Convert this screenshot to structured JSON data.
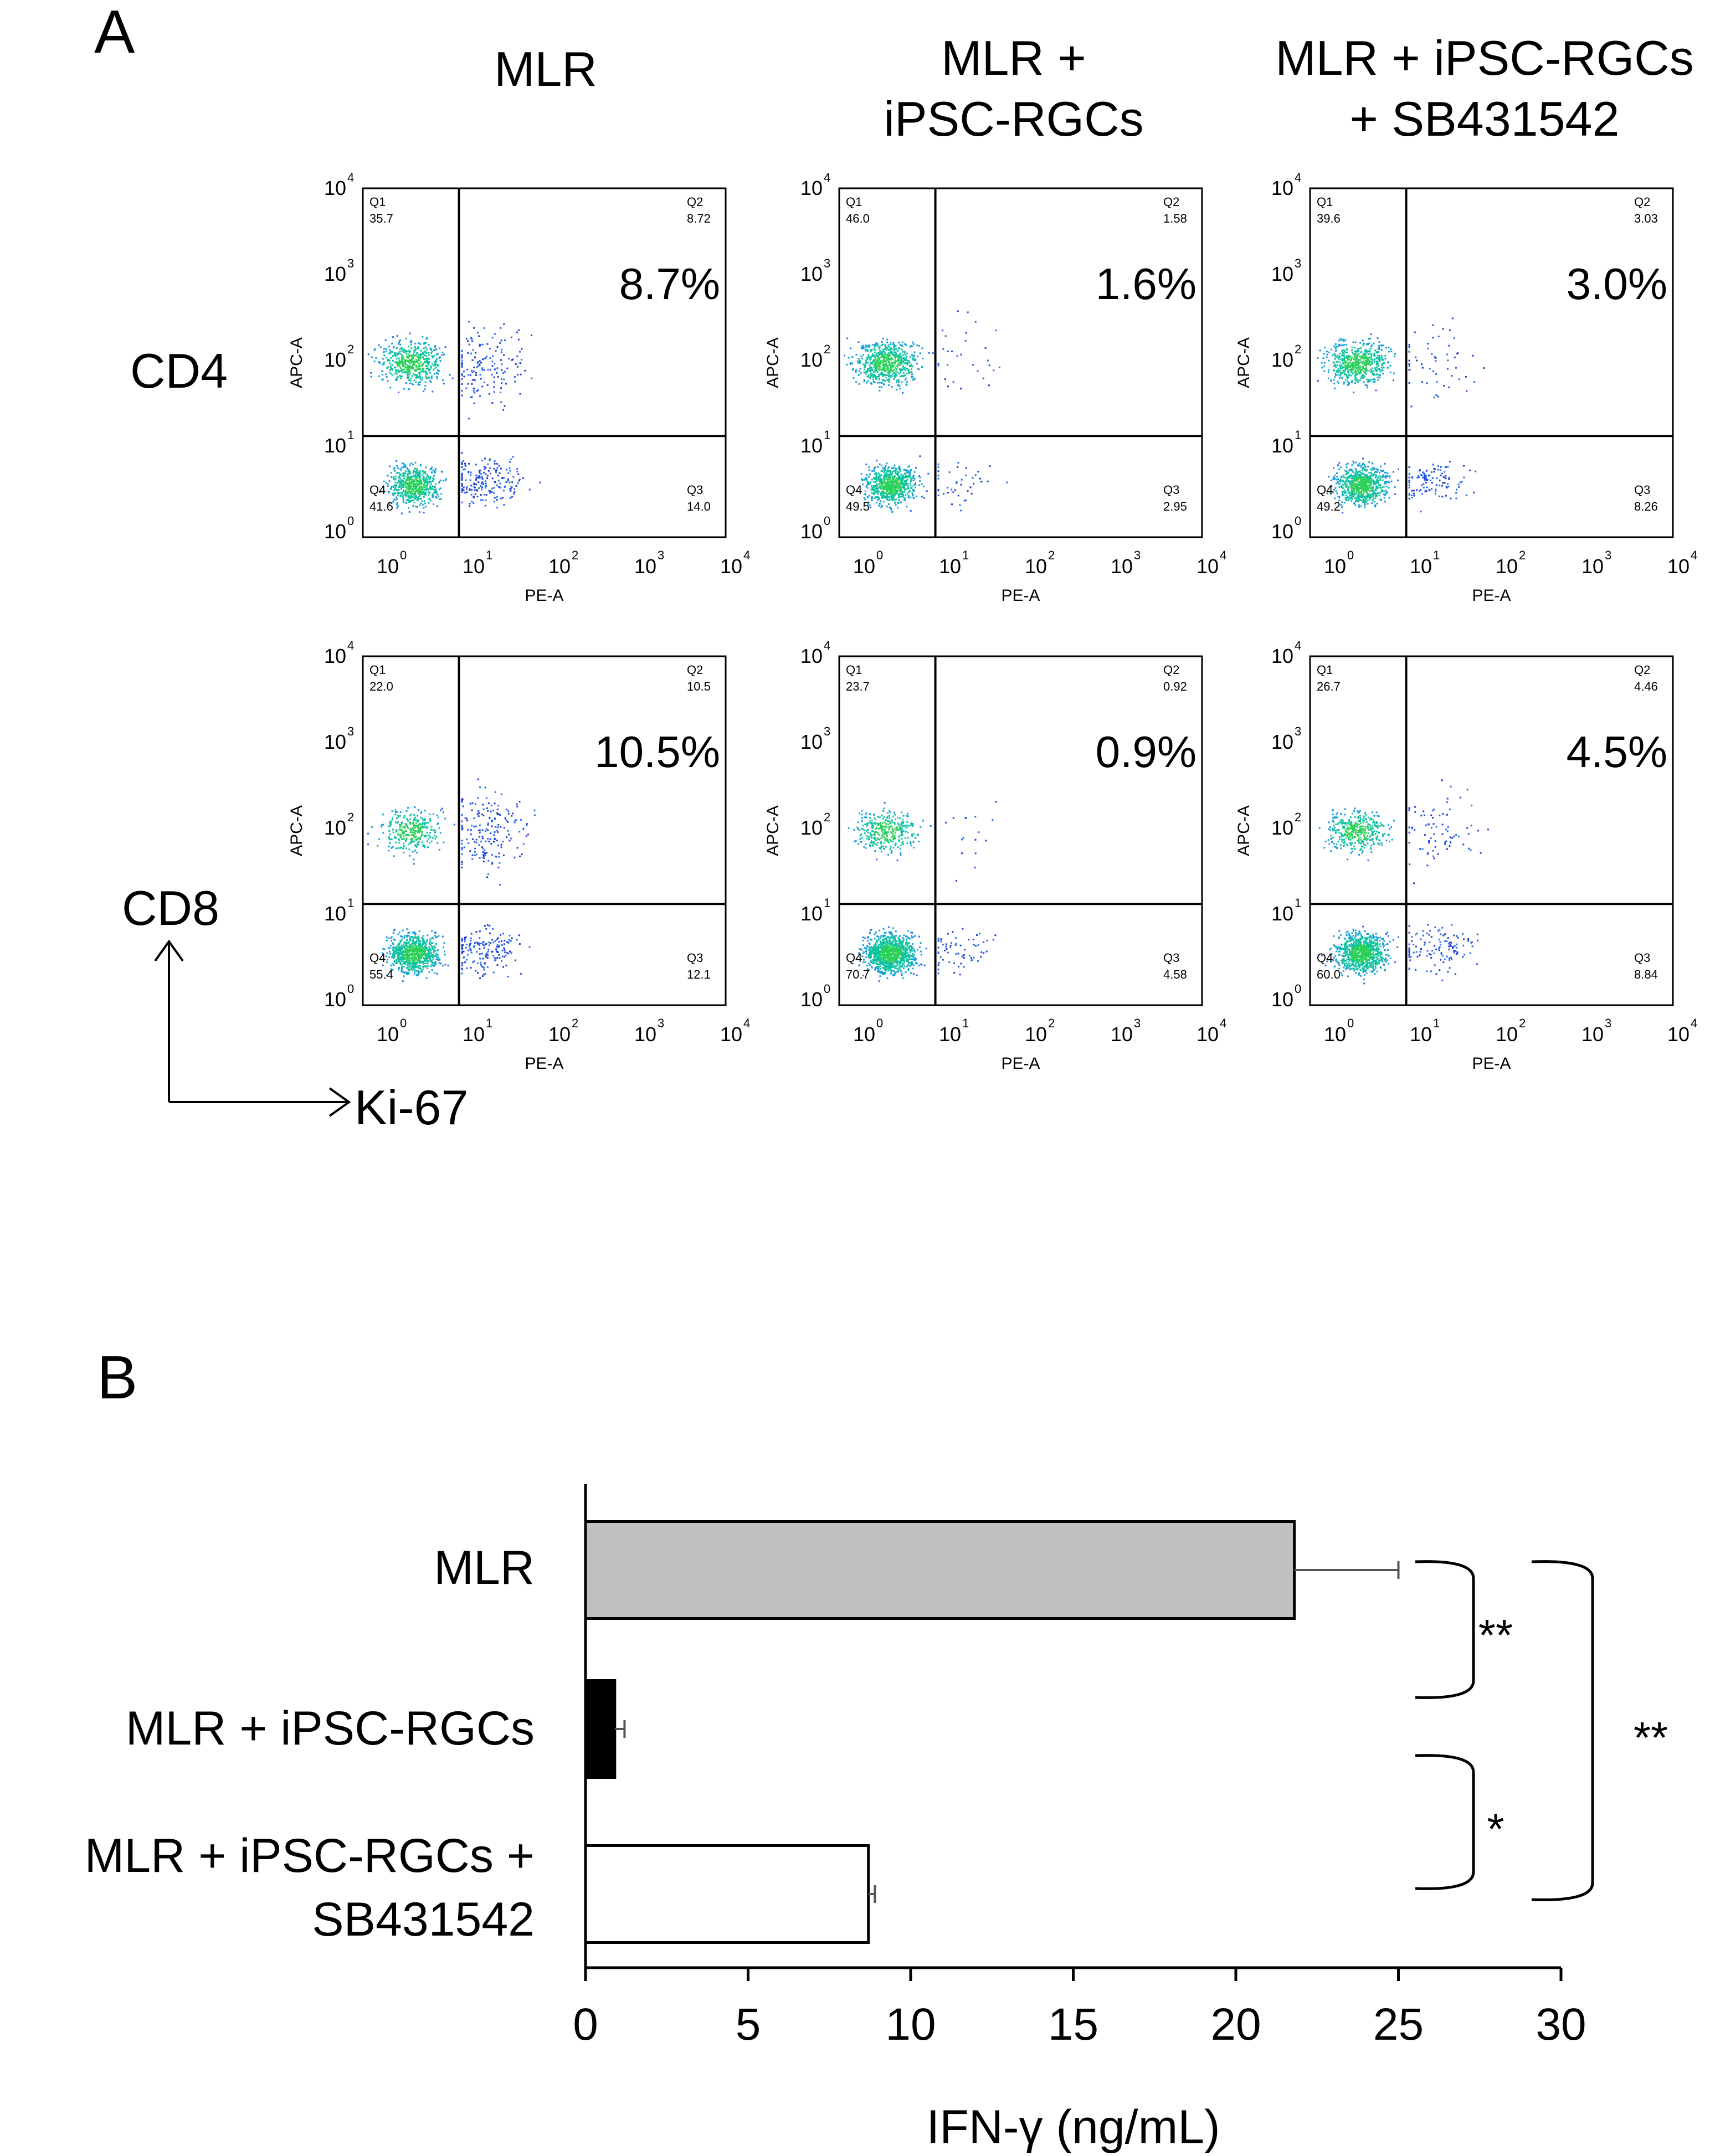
{
  "panel_labels": {
    "a": "A",
    "b": "B"
  },
  "flow": {
    "columns": [
      [
        "MLR"
      ],
      [
        "MLR +",
        "iPSC-RGCs"
      ],
      [
        "MLR + iPSC-RGCs",
        "+ SB431542"
      ]
    ],
    "rows": [
      "CD4",
      "CD8"
    ],
    "axis_key": {
      "y": "CD8",
      "x": "Ki-67"
    },
    "x_axis_title": "PE-A",
    "y_axis_title": "APC-A",
    "tick_base": "10",
    "tick_exponents": [
      "0",
      "1",
      "2",
      "3",
      "4"
    ],
    "quadrant_names": [
      "Q1",
      "Q2",
      "Q3",
      "Q4"
    ],
    "plots": [
      {
        "row": 0,
        "col": 0,
        "q1": "35.7",
        "q2": "8.72",
        "q3": "14.0",
        "q4": "41.6",
        "highlight": "8.7%"
      },
      {
        "row": 0,
        "col": 1,
        "q1": "46.0",
        "q2": "1.58",
        "q3": "2.95",
        "q4": "49.5",
        "highlight": "1.6%"
      },
      {
        "row": 0,
        "col": 2,
        "q1": "39.6",
        "q2": "3.03",
        "q3": "8.26",
        "q4": "49.2",
        "highlight": "3.0%"
      },
      {
        "row": 1,
        "col": 0,
        "q1": "22.0",
        "q2": "10.5",
        "q3": "12.1",
        "q4": "55.4",
        "highlight": "10.5%"
      },
      {
        "row": 1,
        "col": 1,
        "q1": "23.7",
        "q2": "0.92",
        "q3": "4.58",
        "q4": "70.7",
        "highlight": "0.9%"
      },
      {
        "row": 1,
        "col": 2,
        "q1": "26.7",
        "q2": "4.46",
        "q3": "8.84",
        "q4": "60.0",
        "highlight": "4.5%"
      }
    ]
  },
  "chart_data": {
    "type": "bar",
    "orientation": "horizontal",
    "categories": [
      [
        "MLR"
      ],
      [
        "MLR + iPSC-RGCs"
      ],
      [
        "MLR + iPSC-RGCs +",
        "SB431542"
      ]
    ],
    "values": [
      21.8,
      0.9,
      8.7
    ],
    "errors": [
      3.2,
      0.3,
      0.2
    ],
    "bar_colors": [
      "#c0c0c0",
      "#000000",
      "#ffffff"
    ],
    "xlabel": "IFN-γ (ng/mL)",
    "xlim": [
      0,
      30
    ],
    "xticks": [
      0,
      5,
      10,
      15,
      20,
      25,
      30
    ],
    "significance": [
      {
        "between": [
          0,
          1
        ],
        "label": "**"
      },
      {
        "between": [
          1,
          2
        ],
        "label": "*"
      },
      {
        "between": [
          0,
          2
        ],
        "label": "**"
      }
    ]
  }
}
